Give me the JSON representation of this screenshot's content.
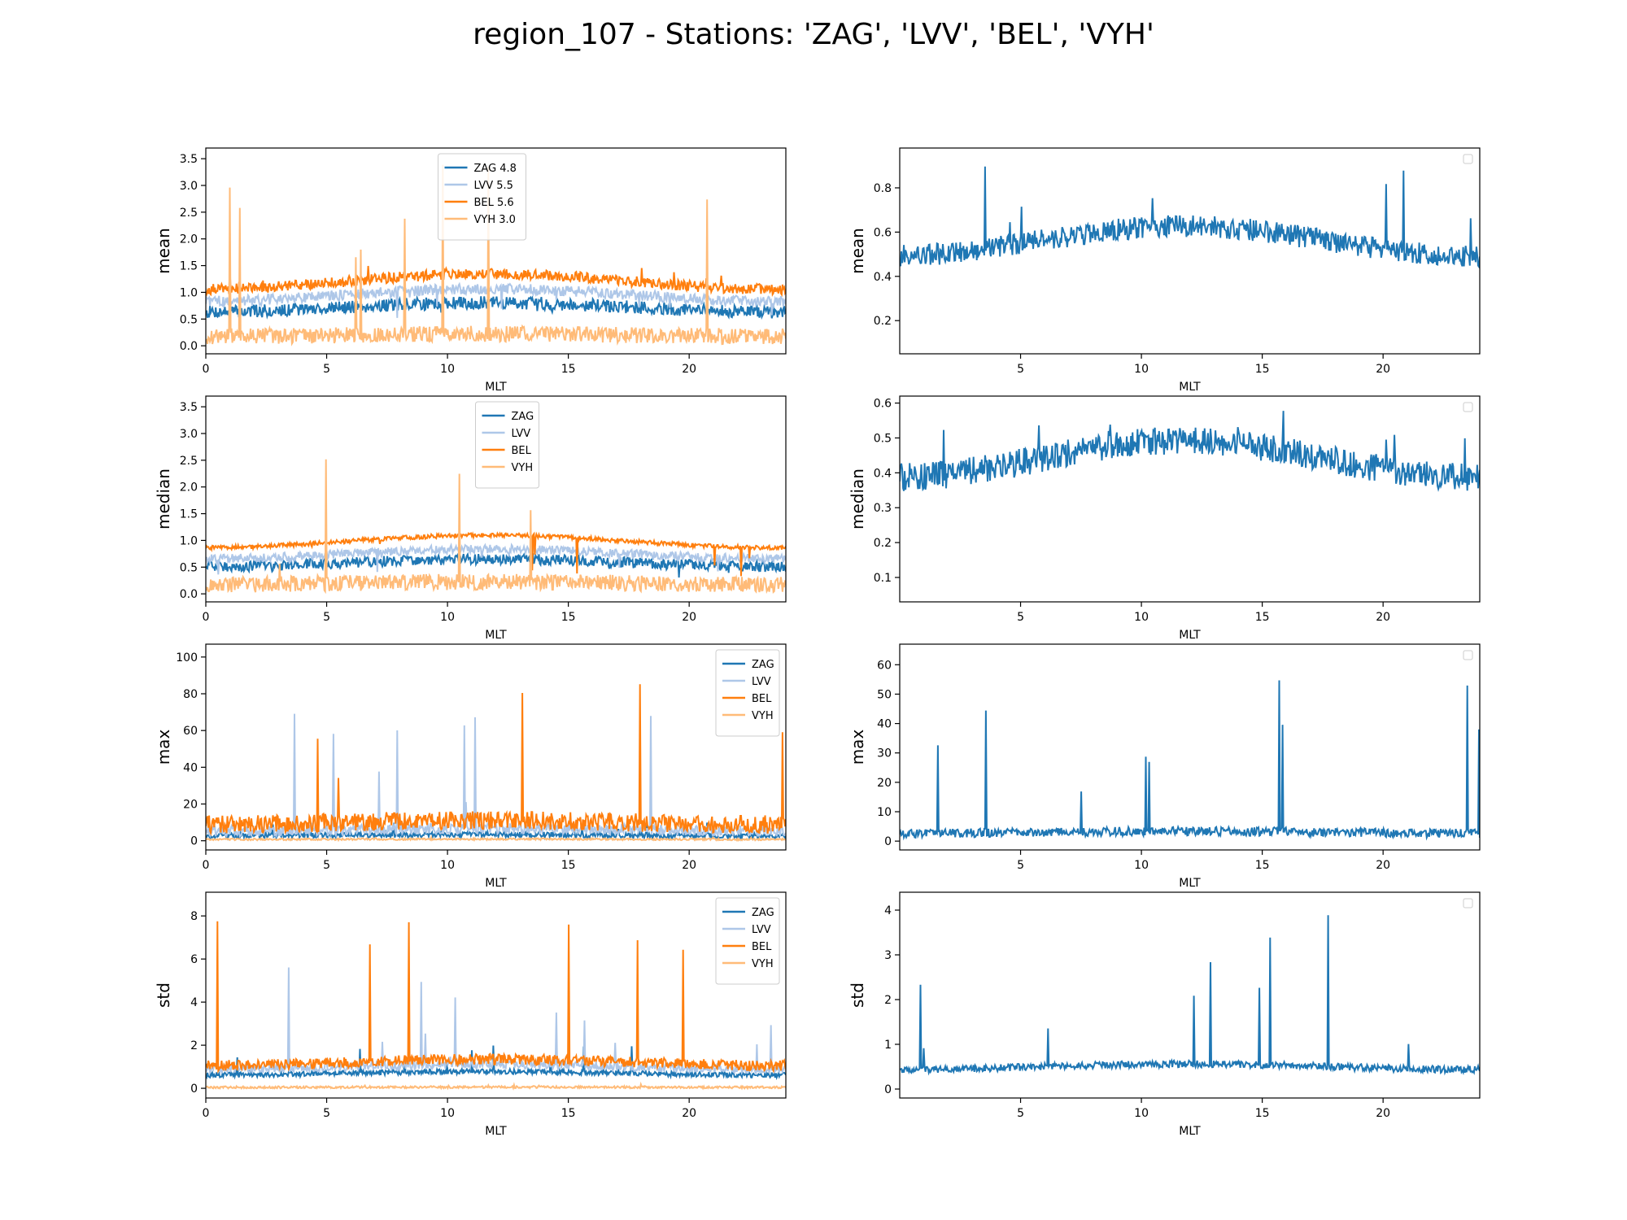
{
  "figure": {
    "title": "region_107 - Stations: 'ZAG', 'LVV', 'BEL', 'VYH'"
  },
  "colors": {
    "ZAG": "#1f77b4",
    "LVV": "#aec7e8",
    "BEL": "#ff7f0e",
    "VYH": "#ffbb78"
  },
  "chart_data": [
    {
      "type": "line",
      "ylabel": "mean",
      "xlabel": "MLT",
      "xlim": [
        0,
        24
      ],
      "ylim": [
        -0.15,
        3.7
      ],
      "xticks": [
        0,
        5,
        10,
        15,
        20
      ],
      "yticks": [
        0.0,
        0.5,
        1.0,
        1.5,
        2.0,
        2.5,
        3.0,
        3.5
      ],
      "legend": "upper-center",
      "series": [
        {
          "name": "ZAG 4.8",
          "station": "ZAG",
          "values_mean": 0.72,
          "values_noise": 0.12,
          "spike_scale": 0.6
        },
        {
          "name": "LVV 5.5",
          "station": "LVV",
          "values_mean": 0.95,
          "values_noise": 0.1,
          "spike_scale": 0.5
        },
        {
          "name": "BEL 5.6",
          "station": "BEL",
          "values_mean": 1.2,
          "values_noise": 0.1,
          "spike_scale": 1.5
        },
        {
          "name": "VYH 3.0",
          "station": "VYH",
          "values_mean": 0.2,
          "values_noise": 0.15,
          "spike_scale": 3.4
        }
      ]
    },
    {
      "type": "line",
      "ylabel": "mean",
      "xlabel": "MLT",
      "xlim": [
        0,
        24
      ],
      "ylim": [
        0.05,
        0.98
      ],
      "xticks": [
        5,
        10,
        15,
        20
      ],
      "yticks": [
        0.2,
        0.4,
        0.6,
        0.8
      ],
      "legend": "upper-right-empty",
      "series": [
        {
          "station": "ZAG",
          "values_mean": 0.56,
          "values_noise": 0.05,
          "spike_scale": 0.94
        }
      ]
    },
    {
      "type": "line",
      "ylabel": "median",
      "xlabel": "MLT",
      "xlim": [
        0,
        24
      ],
      "ylim": [
        -0.15,
        3.7
      ],
      "xticks": [
        0,
        5,
        10,
        15,
        20
      ],
      "yticks": [
        0.0,
        0.5,
        1.0,
        1.5,
        2.0,
        2.5,
        3.0,
        3.5
      ],
      "legend": "upper-center",
      "series": [
        {
          "name": "ZAG",
          "station": "ZAG",
          "values_mean": 0.58,
          "values_noise": 0.1,
          "spike_scale": 0.3
        },
        {
          "name": "LVV",
          "station": "LVV",
          "values_mean": 0.75,
          "values_noise": 0.08,
          "spike_scale": 0.3
        },
        {
          "name": "BEL",
          "station": "BEL",
          "values_mean": 0.98,
          "values_noise": 0.04,
          "spike_scale": 0.3
        },
        {
          "name": "VYH",
          "station": "VYH",
          "values_mean": 0.2,
          "values_noise": 0.15,
          "spike_scale": 3.4
        }
      ]
    },
    {
      "type": "line",
      "ylabel": "median",
      "xlabel": "MLT",
      "xlim": [
        0,
        24
      ],
      "ylim": [
        0.03,
        0.62
      ],
      "xticks": [
        5,
        10,
        15,
        20
      ],
      "yticks": [
        0.1,
        0.2,
        0.3,
        0.4,
        0.5,
        0.6
      ],
      "legend": "upper-right-empty",
      "series": [
        {
          "station": "ZAG",
          "values_mean": 0.44,
          "values_noise": 0.04,
          "spike_scale": 0.58
        }
      ]
    },
    {
      "type": "line",
      "ylabel": "max",
      "xlabel": "MLT",
      "xlim": [
        0,
        24
      ],
      "ylim": [
        -5,
        107
      ],
      "xticks": [
        0,
        5,
        10,
        15,
        20
      ],
      "yticks": [
        0,
        20,
        40,
        60,
        80,
        100
      ],
      "legend": "upper-right",
      "series": [
        {
          "name": "ZAG",
          "station": "ZAG",
          "values_mean": 3,
          "values_noise": 1.5,
          "spike_scale": 10
        },
        {
          "name": "LVV",
          "station": "LVV",
          "values_mean": 6,
          "values_noise": 3,
          "spike_scale": 70
        },
        {
          "name": "BEL",
          "station": "BEL",
          "values_mean": 10,
          "values_noise": 5,
          "spike_scale": 102
        },
        {
          "name": "VYH",
          "station": "VYH",
          "values_mean": 0.8,
          "values_noise": 0.5,
          "spike_scale": 2
        }
      ]
    },
    {
      "type": "line",
      "ylabel": "max",
      "xlabel": "MLT",
      "xlim": [
        0,
        24
      ],
      "ylim": [
        -3,
        67
      ],
      "xticks": [
        5,
        10,
        15,
        20
      ],
      "yticks": [
        0,
        10,
        20,
        30,
        40,
        50,
        60
      ],
      "legend": "upper-right-empty",
      "series": [
        {
          "station": "ZAG",
          "values_mean": 3,
          "values_noise": 1.5,
          "spike_scale": 64
        }
      ]
    },
    {
      "type": "line",
      "ylabel": "std",
      "xlabel": "MLT",
      "xlim": [
        0,
        24
      ],
      "ylim": [
        -0.45,
        9.1
      ],
      "xticks": [
        0,
        5,
        10,
        15,
        20
      ],
      "yticks": [
        0,
        2,
        4,
        6,
        8
      ],
      "legend": "upper-right",
      "series": [
        {
          "name": "ZAG",
          "station": "ZAG",
          "values_mean": 0.7,
          "values_noise": 0.12,
          "spike_scale": 2
        },
        {
          "name": "LVV",
          "station": "LVV",
          "values_mean": 1.0,
          "values_noise": 0.2,
          "spike_scale": 6
        },
        {
          "name": "BEL",
          "station": "BEL",
          "values_mean": 1.2,
          "values_noise": 0.25,
          "spike_scale": 8.7
        },
        {
          "name": "VYH",
          "station": "VYH",
          "values_mean": 0.05,
          "values_noise": 0.05,
          "spike_scale": 0.2
        }
      ]
    },
    {
      "type": "line",
      "ylabel": "std",
      "xlabel": "MLT",
      "xlim": [
        0,
        24
      ],
      "ylim": [
        -0.2,
        4.4
      ],
      "xticks": [
        5,
        10,
        15,
        20
      ],
      "yticks": [
        0,
        1,
        2,
        3,
        4
      ],
      "legend": "upper-right-empty",
      "series": [
        {
          "station": "ZAG",
          "values_mean": 0.5,
          "values_noise": 0.08,
          "spike_scale": 4.15
        }
      ]
    }
  ]
}
